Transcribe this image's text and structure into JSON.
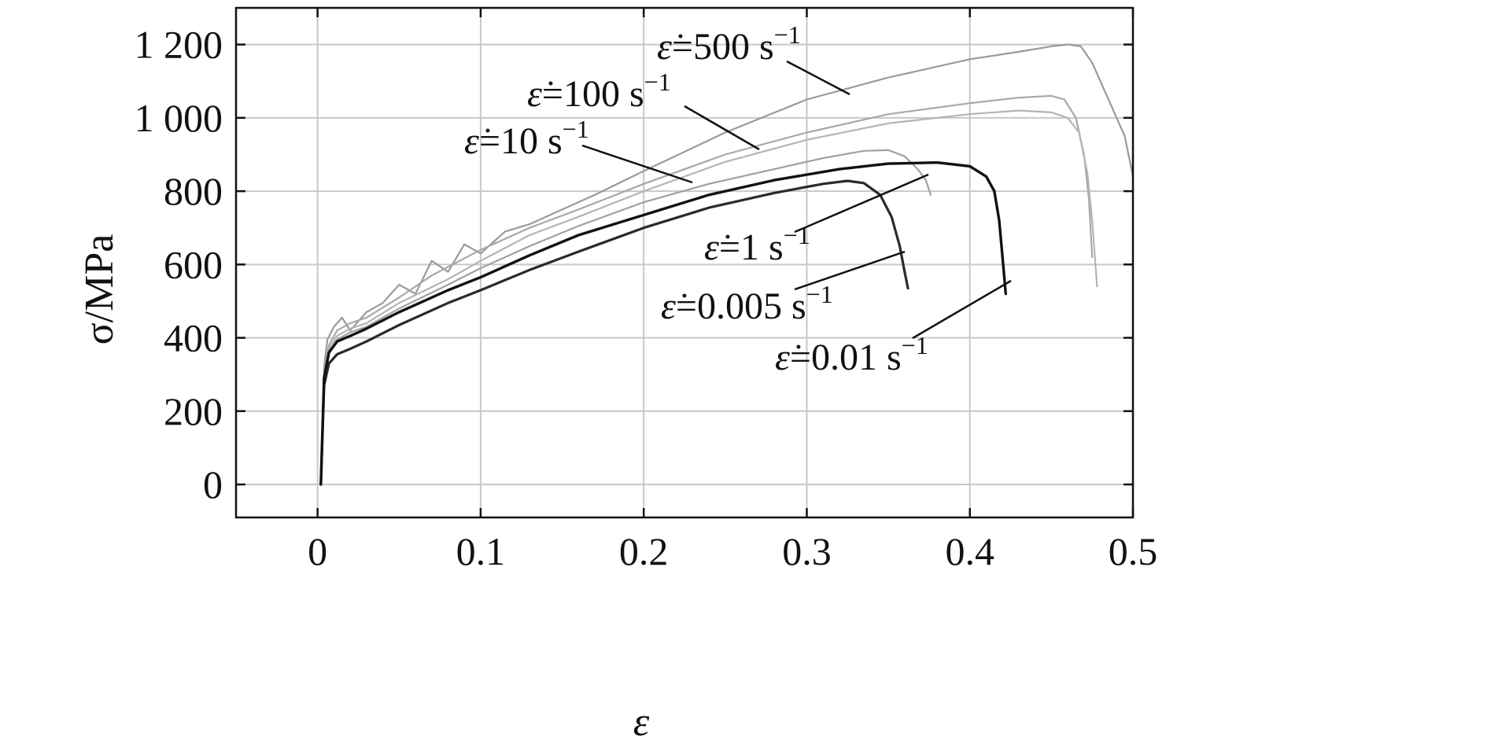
{
  "chart_data": {
    "type": "line",
    "title": "",
    "xlabel": "ε",
    "ylabel": "σ/MPa",
    "xlim": [
      -0.05,
      0.5
    ],
    "ylim": [
      -90,
      1300
    ],
    "xticks": [
      0,
      0.1,
      0.2,
      0.3,
      0.4,
      0.5
    ],
    "xtick_labels": [
      "0",
      "0.1",
      "0.2",
      "0.3",
      "0.4",
      "0.5"
    ],
    "yticks": [
      0,
      200,
      400,
      600,
      800,
      1000,
      1200
    ],
    "ytick_labels": [
      "0",
      "200",
      "400",
      "600",
      "800",
      "1 000",
      "1 200"
    ],
    "grid": true,
    "legend": "inline labels with leader lines",
    "series": [
      {
        "name": "ε̇=500 s⁻¹",
        "label_main": "=500 s",
        "label_sup": "−1",
        "color": "#9a9a9a",
        "points": [
          [
            0.002,
            0
          ],
          [
            0.004,
            320
          ],
          [
            0.006,
            395
          ],
          [
            0.01,
            430
          ],
          [
            0.015,
            455
          ],
          [
            0.02,
            420
          ],
          [
            0.03,
            470
          ],
          [
            0.04,
            495
          ],
          [
            0.05,
            545
          ],
          [
            0.06,
            520
          ],
          [
            0.07,
            610
          ],
          [
            0.08,
            580
          ],
          [
            0.09,
            655
          ],
          [
            0.1,
            630
          ],
          [
            0.115,
            690
          ],
          [
            0.13,
            710
          ],
          [
            0.15,
            750
          ],
          [
            0.17,
            790
          ],
          [
            0.2,
            855
          ],
          [
            0.25,
            960
          ],
          [
            0.3,
            1050
          ],
          [
            0.35,
            1110
          ],
          [
            0.4,
            1160
          ],
          [
            0.43,
            1180
          ],
          [
            0.45,
            1195
          ],
          [
            0.46,
            1200
          ],
          [
            0.468,
            1195
          ],
          [
            0.475,
            1150
          ],
          [
            0.485,
            1050
          ],
          [
            0.495,
            950
          ],
          [
            0.5,
            840
          ]
        ]
      },
      {
        "name": "ε̇=100 s⁻¹",
        "label_main": "=100 s",
        "label_sup": "−1",
        "color": "#a8a8a8",
        "points": [
          [
            0.002,
            0
          ],
          [
            0.004,
            310
          ],
          [
            0.007,
            380
          ],
          [
            0.012,
            420
          ],
          [
            0.02,
            440
          ],
          [
            0.03,
            455
          ],
          [
            0.05,
            510
          ],
          [
            0.07,
            570
          ],
          [
            0.1,
            640
          ],
          [
            0.13,
            700
          ],
          [
            0.16,
            750
          ],
          [
            0.2,
            820
          ],
          [
            0.25,
            900
          ],
          [
            0.3,
            960
          ],
          [
            0.35,
            1010
          ],
          [
            0.4,
            1040
          ],
          [
            0.43,
            1055
          ],
          [
            0.45,
            1060
          ],
          [
            0.458,
            1050
          ],
          [
            0.465,
            1000
          ],
          [
            0.47,
            900
          ],
          [
            0.473,
            780
          ],
          [
            0.475,
            620
          ]
        ]
      },
      {
        "name": "ε̇=10 s⁻¹",
        "label_main": "=10 s",
        "label_sup": "−1",
        "color": "#b4b4b4",
        "points": [
          [
            0.002,
            0
          ],
          [
            0.004,
            300
          ],
          [
            0.007,
            370
          ],
          [
            0.012,
            405
          ],
          [
            0.02,
            425
          ],
          [
            0.03,
            440
          ],
          [
            0.05,
            495
          ],
          [
            0.08,
            560
          ],
          [
            0.1,
            610
          ],
          [
            0.13,
            680
          ],
          [
            0.16,
            730
          ],
          [
            0.2,
            800
          ],
          [
            0.25,
            880
          ],
          [
            0.3,
            940
          ],
          [
            0.35,
            985
          ],
          [
            0.4,
            1010
          ],
          [
            0.43,
            1020
          ],
          [
            0.45,
            1015
          ],
          [
            0.46,
            1000
          ],
          [
            0.467,
            960
          ],
          [
            0.472,
            850
          ],
          [
            0.475,
            720
          ],
          [
            0.478,
            540
          ]
        ]
      },
      {
        "name": "ε̇=1 s⁻¹",
        "label_main": "=1 s",
        "label_sup": "−1",
        "color": "#a0a0a0",
        "points": [
          [
            0.002,
            0
          ],
          [
            0.004,
            290
          ],
          [
            0.007,
            360
          ],
          [
            0.012,
            395
          ],
          [
            0.02,
            415
          ],
          [
            0.03,
            430
          ],
          [
            0.05,
            480
          ],
          [
            0.08,
            545
          ],
          [
            0.1,
            590
          ],
          [
            0.13,
            650
          ],
          [
            0.16,
            705
          ],
          [
            0.2,
            770
          ],
          [
            0.24,
            820
          ],
          [
            0.28,
            860
          ],
          [
            0.31,
            890
          ],
          [
            0.335,
            910
          ],
          [
            0.35,
            912
          ],
          [
            0.36,
            895
          ],
          [
            0.368,
            860
          ],
          [
            0.373,
            830
          ],
          [
            0.376,
            790
          ]
        ]
      },
      {
        "name": "ε̇=0.005 s⁻¹",
        "label_main": "=0.005 s",
        "label_sup": "−1",
        "color": "#2a2a2a",
        "points": [
          [
            0.002,
            0
          ],
          [
            0.004,
            270
          ],
          [
            0.007,
            330
          ],
          [
            0.012,
            355
          ],
          [
            0.02,
            370
          ],
          [
            0.03,
            390
          ],
          [
            0.05,
            435
          ],
          [
            0.08,
            495
          ],
          [
            0.1,
            530
          ],
          [
            0.13,
            585
          ],
          [
            0.16,
            635
          ],
          [
            0.2,
            700
          ],
          [
            0.24,
            755
          ],
          [
            0.28,
            795
          ],
          [
            0.31,
            820
          ],
          [
            0.325,
            828
          ],
          [
            0.335,
            822
          ],
          [
            0.345,
            790
          ],
          [
            0.352,
            730
          ],
          [
            0.357,
            650
          ],
          [
            0.36,
            580
          ],
          [
            0.362,
            535
          ]
        ]
      },
      {
        "name": "ε̇=0.01 s⁻¹",
        "label_main": "=0.01 s",
        "label_sup": "−1",
        "color": "#111111",
        "points": [
          [
            0.002,
            0
          ],
          [
            0.004,
            290
          ],
          [
            0.007,
            360
          ],
          [
            0.012,
            390
          ],
          [
            0.02,
            405
          ],
          [
            0.03,
            425
          ],
          [
            0.05,
            470
          ],
          [
            0.08,
            530
          ],
          [
            0.1,
            565
          ],
          [
            0.13,
            625
          ],
          [
            0.16,
            680
          ],
          [
            0.2,
            735
          ],
          [
            0.24,
            790
          ],
          [
            0.28,
            830
          ],
          [
            0.32,
            860
          ],
          [
            0.35,
            875
          ],
          [
            0.38,
            878
          ],
          [
            0.4,
            868
          ],
          [
            0.41,
            840
          ],
          [
            0.415,
            800
          ],
          [
            0.418,
            720
          ],
          [
            0.42,
            620
          ],
          [
            0.422,
            520
          ]
        ]
      }
    ]
  }
}
